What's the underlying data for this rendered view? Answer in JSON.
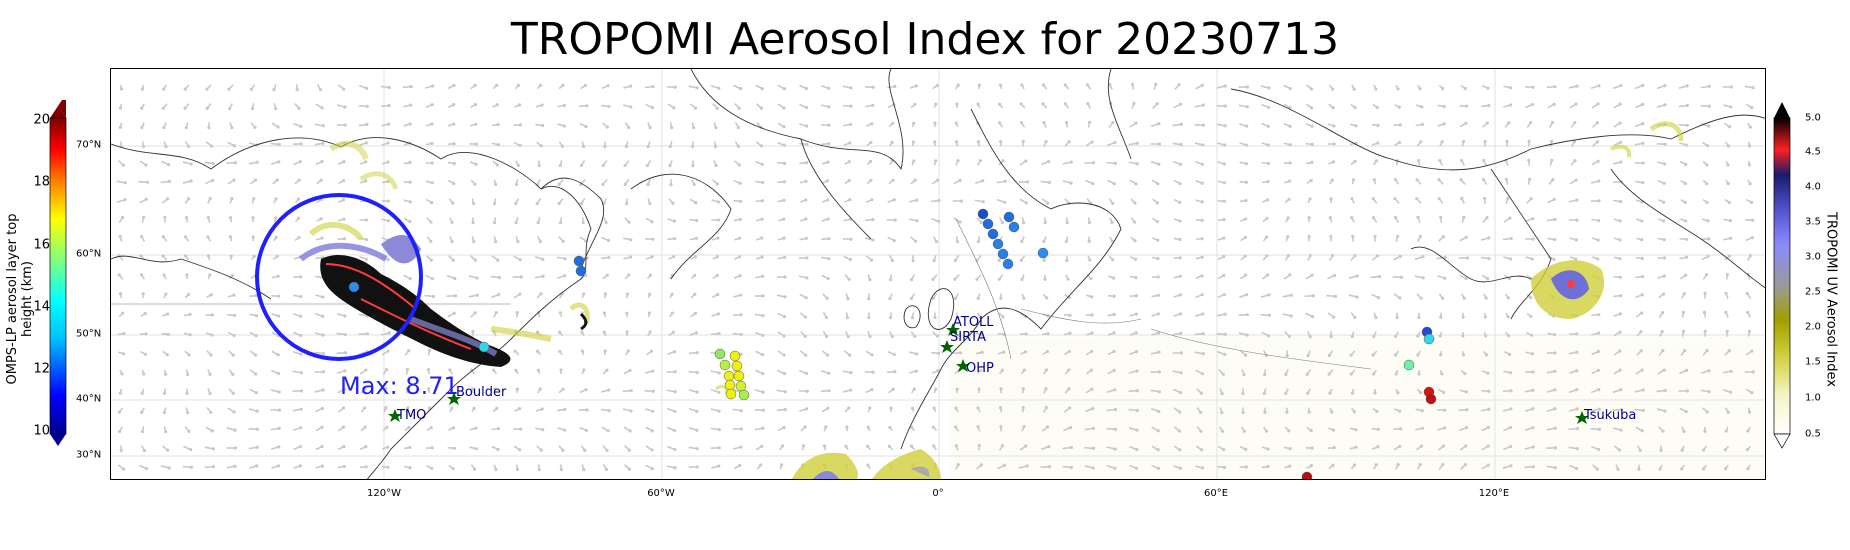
{
  "title": "TROPOMI Aerosol Index for 20230713",
  "left_colorbar": {
    "label": "OMPS-LP aerosol layer top height (km)",
    "ticks": [
      "20",
      "18",
      "16",
      "14",
      "12",
      "10"
    ],
    "lat_ticks": [
      "70°N",
      "60°N",
      "50°N",
      "40°N",
      "30°N"
    ],
    "colors": [
      "#00008b",
      "#0000ff",
      "#00bfff",
      "#00ffff",
      "#7fff7f",
      "#ffff00",
      "#ff7f00",
      "#ff0000",
      "#800000"
    ]
  },
  "right_colorbar": {
    "label": "TROPOMI UV Aerosol Index",
    "ticks": [
      "5.0",
      "4.5",
      "4.0",
      "3.5",
      "3.0",
      "2.5",
      "2.0",
      "1.5",
      "1.0",
      "0.5"
    ],
    "colors": [
      "#ffffff",
      "#f5f5c8",
      "#cfcf3a",
      "#a0a000",
      "#9a9a9a",
      "#8a8aff",
      "#4d4dc8",
      "#1a1a6e",
      "#ff2020",
      "#000000"
    ]
  },
  "x_ticks": [
    "120°W",
    "60°W",
    "0°",
    "60°E",
    "120°E"
  ],
  "stations": [
    "ATOLL",
    "SIRTA",
    "OHP",
    "Boulder",
    "TMO",
    "Tsukuba"
  ],
  "max_label": "Max: 8.71",
  "colors": {
    "circle": "#1f1fff",
    "station_marker": "#006400",
    "station_text": "#00008b",
    "wind_arrow": "#c8c8c8",
    "coastline": "#333333"
  }
}
